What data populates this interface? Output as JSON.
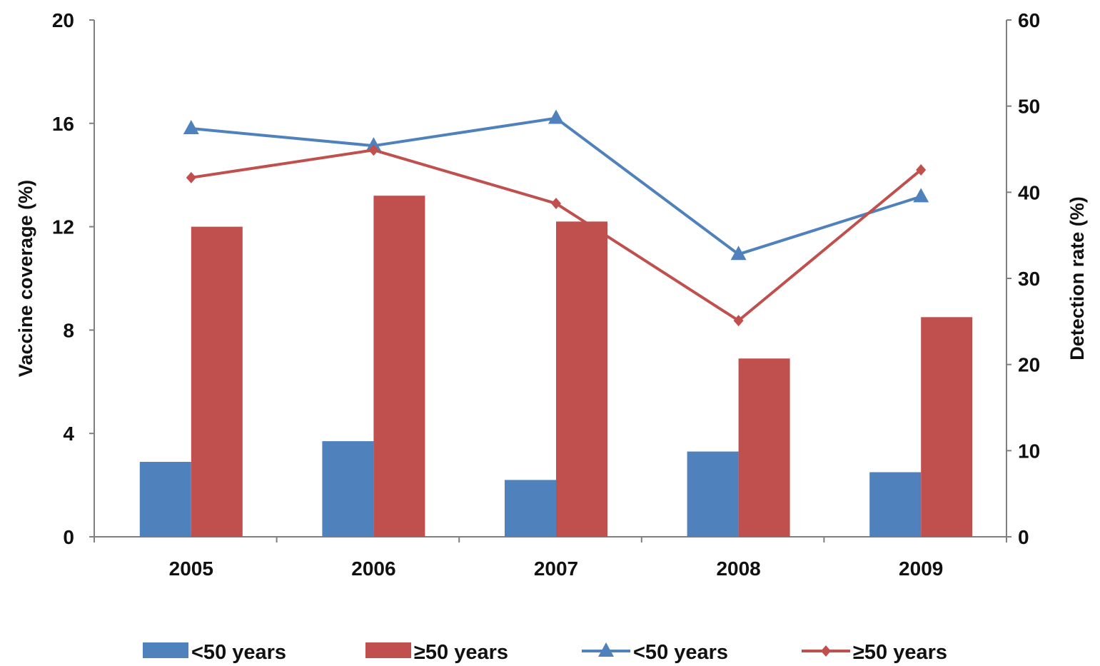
{
  "chart_data": {
    "type": "bar",
    "categories": [
      "2005",
      "2006",
      "2007",
      "2008",
      "2009"
    ],
    "bar_series": [
      {
        "name": "<50 years",
        "color": "#4f81bd",
        "values": [
          2.9,
          3.7,
          2.2,
          3.3,
          2.5
        ]
      },
      {
        "name": "≥50 years",
        "color": "#c0504d",
        "values": [
          12.0,
          13.2,
          12.2,
          6.9,
          8.5
        ]
      }
    ],
    "line_series": [
      {
        "name": "<50 years",
        "color": "#4f81bd",
        "marker": "triangle",
        "values": [
          47.4,
          45.4,
          48.6,
          32.8,
          39.5
        ]
      },
      {
        "name": "≥50 years",
        "color": "#c0504d",
        "marker": "diamond",
        "values": [
          41.7,
          44.9,
          38.7,
          25.1,
          42.6
        ]
      }
    ],
    "y_left": {
      "label": "Vaccine coverage (%)",
      "lim": [
        0,
        20
      ],
      "ticks": [
        "0",
        "4",
        "8",
        "12",
        "16",
        "20"
      ]
    },
    "y_right": {
      "label": "Detection rate (%)",
      "lim": [
        0,
        60
      ],
      "ticks": [
        "0",
        "10",
        "20",
        "30",
        "40",
        "50",
        "60"
      ]
    },
    "legend_position": "bottom",
    "grid": false
  }
}
